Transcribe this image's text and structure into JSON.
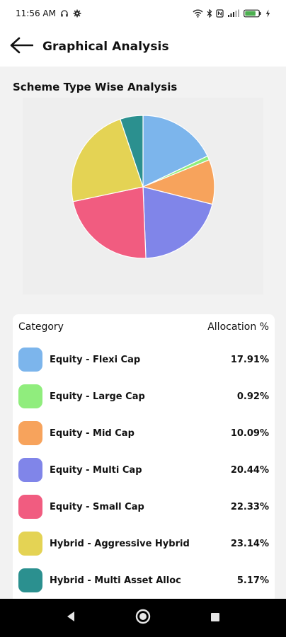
{
  "status_bar": {
    "time": "11:56 AM",
    "battery_level": 0.8,
    "icons": [
      "headphones-icon",
      "settings-icon",
      "wifi-icon",
      "bluetooth-icon",
      "nfc-icon",
      "signal-icon",
      "battery-icon",
      "charging-icon"
    ]
  },
  "header": {
    "title": "Graphical Analysis",
    "back_icon": "arrow-left-icon"
  },
  "section": {
    "title": "Scheme Type Wise Analysis"
  },
  "table": {
    "col_category": "Category",
    "col_allocation": "Allocation %"
  },
  "chart_data": {
    "type": "pie",
    "title": "Scheme Type Wise Analysis",
    "slices": [
      {
        "label": "Equity - Flexi Cap",
        "value": 17.91,
        "display": "17.91%",
        "color": "#7cb5ec"
      },
      {
        "label": "Equity - Large Cap",
        "value": 0.92,
        "display": "0.92%",
        "color": "#90ed7d"
      },
      {
        "label": "Equity - Mid Cap",
        "value": 10.09,
        "display": "10.09%",
        "color": "#f7a35c"
      },
      {
        "label": "Equity - Multi Cap",
        "value": 20.44,
        "display": "20.44%",
        "color": "#8085e9"
      },
      {
        "label": "Equity - Small Cap",
        "value": 22.33,
        "display": "22.33%",
        "color": "#f15c80"
      },
      {
        "label": "Hybrid - Aggressive Hybrid",
        "value": 23.14,
        "display": "23.14%",
        "color": "#e4d354"
      },
      {
        "label": "Hybrid - Multi Asset Alloc",
        "value": 5.17,
        "display": "5.17%",
        "color": "#2b908f"
      }
    ]
  },
  "nav_bar": {
    "icons": [
      "back-triangle-icon",
      "home-circle-icon",
      "recents-square-icon"
    ]
  }
}
